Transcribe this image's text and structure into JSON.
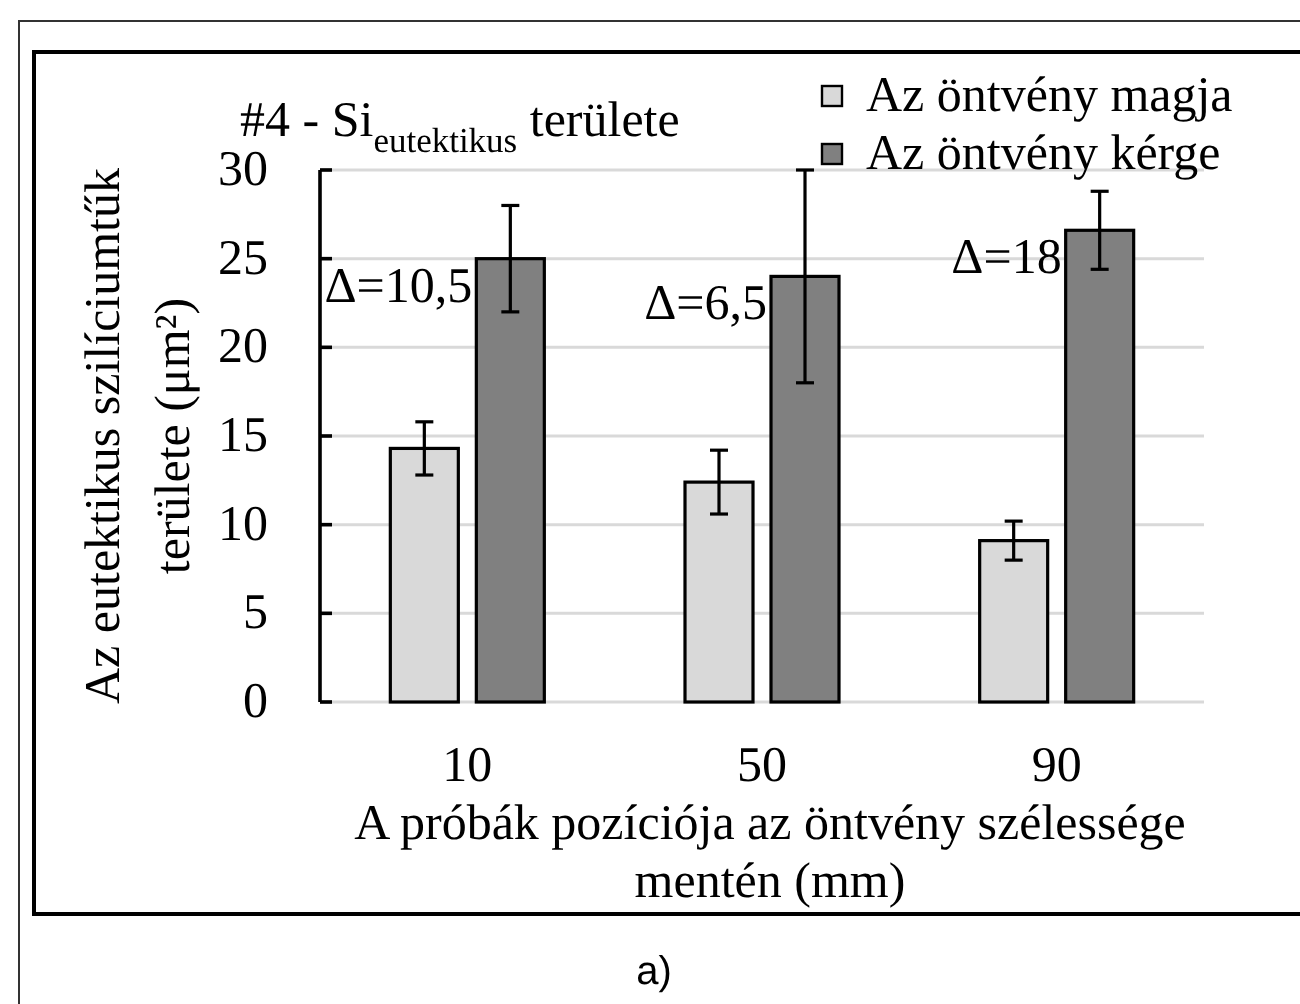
{
  "chart_data": {
    "type": "bar",
    "title": "#4 - Si$_{eutektikus}$ területe",
    "xlabel": "A próbák pozíciója az öntvény szélessége mentén (mm)",
    "ylabel": "Az eutektikus szilíciumtűk területe (μm²)",
    "categories": [
      "10",
      "50",
      "90"
    ],
    "series": [
      {
        "name": "Az öntvény magja",
        "color": "#d9d9d9",
        "values": [
          14.3,
          12.4,
          9.1
        ],
        "errors": [
          1.5,
          1.8,
          1.1
        ]
      },
      {
        "name": "Az öntvény kérge",
        "color": "#808080",
        "values": [
          25,
          24,
          26.6
        ],
        "errors": [
          3,
          6,
          2.2
        ]
      }
    ],
    "ylim": [
      0,
      30
    ],
    "yticks": [
      0,
      5,
      10,
      15,
      20,
      25,
      30
    ],
    "grid": "y",
    "legend": "top right",
    "annotations": [
      "Δ=10,5",
      "Δ=6,5",
      "Δ=18",
      "a)"
    ]
  }
}
